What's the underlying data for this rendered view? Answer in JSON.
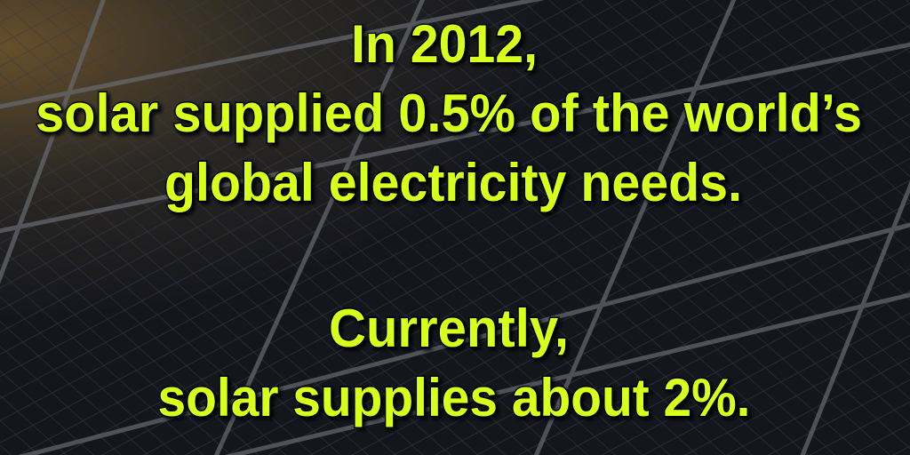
{
  "paragraphs": [
    {
      "lines": [
        "In 2012,",
        "solar supplied 0.5% of the world’s",
        "global electricity needs."
      ]
    },
    {
      "lines": [
        "Currently,",
        "solar supplies about 2%."
      ]
    }
  ]
}
